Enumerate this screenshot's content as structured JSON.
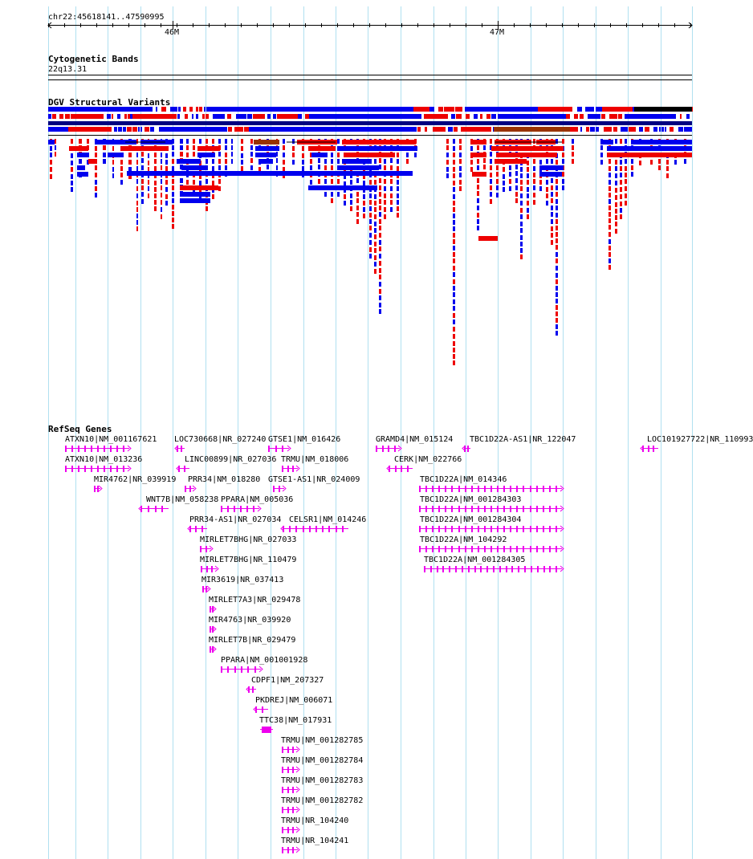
{
  "header": {
    "region": "chr22:45618141..47590995",
    "ticks": [
      {
        "label": "46M"
      },
      {
        "label": "47M"
      }
    ]
  },
  "tracks": {
    "cytobands": {
      "title": "Cytogenetic Bands",
      "band": "22q13.31"
    },
    "dgv": {
      "title": "DGV Structural Variants"
    },
    "refseq": {
      "title": "RefSeq Genes"
    }
  },
  "colors": {
    "gain": "#0000ee",
    "loss": "#ee0000",
    "inversion": "#993300",
    "complex": "#000000",
    "gene": "#ee00ee",
    "grid": "#b0e0f0"
  },
  "genes": [
    {
      "label": "ATXN10|NM_001167621"
    },
    {
      "label": "ATXN10|NM_013236"
    },
    {
      "label": "MIR4762|NR_039919"
    },
    {
      "label": "WNT7B|NM_058238"
    },
    {
      "label": "LOC730668|NR_027240"
    },
    {
      "label": "LINC00899|NR_027036"
    },
    {
      "label": "PRR34|NM_018280"
    },
    {
      "label": "PPARA|NM_005036"
    },
    {
      "label": "PRR34-AS1|NR_027034"
    },
    {
      "label": "MIRLET7BHG|NR_027033"
    },
    {
      "label": "MIRLET7BHG|NR_110479"
    },
    {
      "label": "MIR3619|NR_037413"
    },
    {
      "label": "MIRLET7A3|NR_029478"
    },
    {
      "label": "MIR4763|NR_039920"
    },
    {
      "label": "MIRLET7B|NR_029479"
    },
    {
      "label": "PPARA|NM_001001928"
    },
    {
      "label": "CDPF1|NM_207327"
    },
    {
      "label": "PKDREJ|NM_006071"
    },
    {
      "label": "TTC38|NM_017931"
    },
    {
      "label": "GTSE1|NM_016426"
    },
    {
      "label": "TRMU|NM_018006"
    },
    {
      "label": "GTSE1-AS1|NR_024009"
    },
    {
      "label": "CELSR1|NM_014246"
    },
    {
      "label": "TRMU|NM_001282785"
    },
    {
      "label": "TRMU|NM_001282784"
    },
    {
      "label": "TRMU|NM_001282783"
    },
    {
      "label": "TRMU|NM_001282782"
    },
    {
      "label": "TRMU|NR_104240"
    },
    {
      "label": "TRMU|NR_104241"
    },
    {
      "label": "GRAMD4|NM_015124"
    },
    {
      "label": "CERK|NM_022766"
    },
    {
      "label": "TBC1D22A-AS1|NR_122047"
    },
    {
      "label": "TBC1D22A|NM_014346"
    },
    {
      "label": "TBC1D22A|NM_001284303"
    },
    {
      "label": "TBC1D22A|NM_001284304"
    },
    {
      "label": "TBC1D22A|NM_104292"
    },
    {
      "label": "TBC1D22A|NM_001284305"
    },
    {
      "label": "LOC101927722|NR_110993"
    }
  ]
}
